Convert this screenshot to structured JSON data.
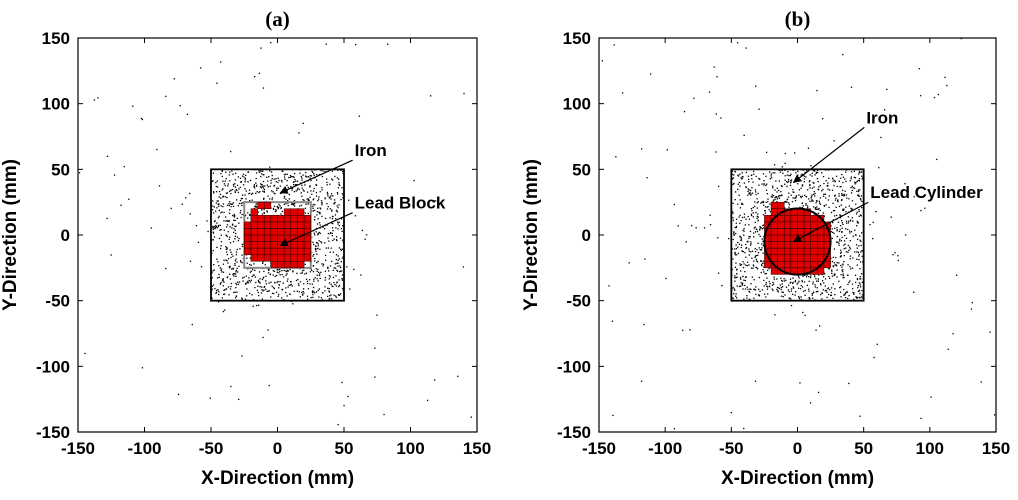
{
  "chart_data": [
    {
      "type": "scatter",
      "title": "(a)",
      "xlabel": "X-Direction (mm)",
      "ylabel": "Y-Direction (mm)",
      "xlim": [
        -150,
        150
      ],
      "ylim": [
        -150,
        150
      ],
      "xticks": [
        -150,
        -100,
        -50,
        0,
        50,
        100,
        150
      ],
      "yticks": [
        -150,
        -100,
        -50,
        0,
        50,
        100,
        150
      ],
      "grid": false,
      "point_color": "#000000",
      "voxel_color": "#e00000",
      "regions": [
        {
          "name": "Iron",
          "shape": "square",
          "x": [
            -50,
            50
          ],
          "y": [
            -50,
            50
          ]
        },
        {
          "name": "Lead Block",
          "shape": "square",
          "x": [
            -25,
            25
          ],
          "y": [
            -25,
            25
          ]
        }
      ],
      "annotations": [
        {
          "text": "Iron",
          "text_at": [
            58,
            60
          ],
          "arrow_to": [
            2,
            32
          ]
        },
        {
          "text": "Lead Block",
          "text_at": [
            58,
            20
          ],
          "arrow_to": [
            2,
            -8
          ]
        }
      ],
      "voxels": [
        {
          "cell_size": 5,
          "x": [
            -15,
            -5
          ],
          "y": [
            20,
            25
          ]
        },
        {
          "cell_size": 5,
          "x": [
            5,
            20
          ],
          "y": [
            15,
            20
          ]
        },
        {
          "cell_size": 5,
          "x": [
            -20,
            -15
          ],
          "y": [
            15,
            20
          ]
        },
        {
          "cell_size": 5,
          "x": [
            -20,
            25
          ],
          "y": [
            -20,
            15
          ]
        },
        {
          "cell_size": 5,
          "x": [
            -25,
            -20
          ],
          "y": [
            -15,
            10
          ]
        },
        {
          "cell_size": 5,
          "x": [
            -5,
            20
          ],
          "y": [
            -25,
            -20
          ]
        }
      ]
    },
    {
      "type": "scatter",
      "title": "(b)",
      "xlabel": "X-Direction (mm)",
      "ylabel": "Y-Direction (mm)",
      "xlim": [
        -150,
        150
      ],
      "ylim": [
        -150,
        150
      ],
      "xticks": [
        -150,
        -100,
        -50,
        0,
        50,
        100,
        150
      ],
      "yticks": [
        -150,
        -100,
        -50,
        0,
        50,
        100,
        150
      ],
      "grid": false,
      "point_color": "#000000",
      "voxel_color": "#e00000",
      "regions": [
        {
          "name": "Iron",
          "shape": "square",
          "x": [
            -50,
            50
          ],
          "y": [
            -50,
            50
          ]
        },
        {
          "name": "Lead Cylinder",
          "shape": "circle",
          "cx": 0,
          "cy": -5,
          "r": 25
        }
      ],
      "annotations": [
        {
          "text": "Iron",
          "text_at": [
            52,
            85
          ],
          "arrow_to": [
            -3,
            40
          ]
        },
        {
          "text": "Lead Cylinder",
          "text_at": [
            55,
            28
          ],
          "arrow_to": [
            -3,
            -5
          ]
        }
      ],
      "voxels": [
        {
          "cell_size": 5,
          "x": [
            -20,
            -10
          ],
          "y": [
            20,
            25
          ]
        },
        {
          "cell_size": 5,
          "x": [
            -20,
            10
          ],
          "y": [
            15,
            20
          ]
        },
        {
          "cell_size": 5,
          "x": [
            -25,
            20
          ],
          "y": [
            10,
            15
          ]
        },
        {
          "cell_size": 5,
          "x": [
            -25,
            25
          ],
          "y": [
            -25,
            10
          ]
        },
        {
          "cell_size": 5,
          "x": [
            -20,
            20
          ],
          "y": [
            -30,
            -25
          ]
        }
      ]
    }
  ]
}
